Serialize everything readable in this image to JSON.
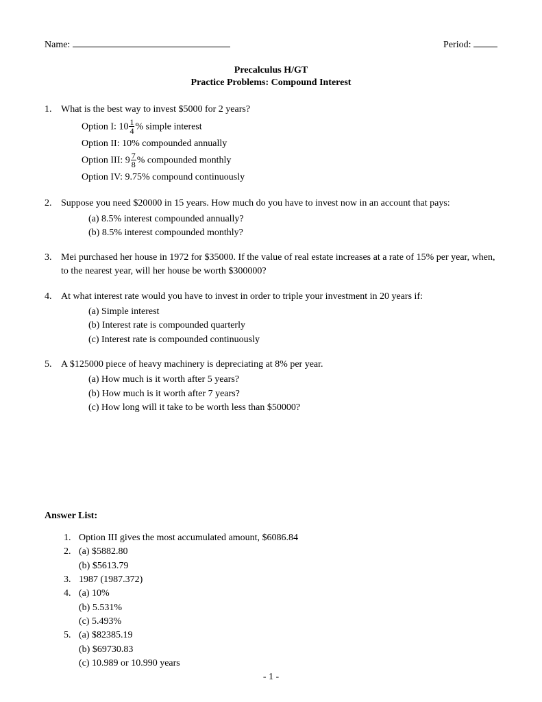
{
  "header": {
    "name_label": "Name:",
    "period_label": "Period:"
  },
  "title": {
    "line1": "Precalculus H/GT",
    "line2": "Practice Problems: Compound Interest"
  },
  "problems": [
    {
      "num": "1.",
      "text": "What is the best way to invest $5000 for 2 years?",
      "options": [
        {
          "prefix": "Option I: 10",
          "frac_num": "1",
          "frac_den": "4",
          "suffix": "% simple interest"
        },
        {
          "prefix": "Option II: 10% compounded annually"
        },
        {
          "prefix": "Option III: 9",
          "frac_num": "7",
          "frac_den": "8",
          "suffix": "% compounded monthly"
        },
        {
          "prefix": "Option IV: 9.75% compound continuously"
        }
      ]
    },
    {
      "num": "2.",
      "text": "Suppose you need $20000 in 15 years.  How much do you have to invest now in an account that pays:",
      "subparts": [
        "(a)  8.5% interest compounded annually?",
        "(b)  8.5% interest compounded monthly?"
      ]
    },
    {
      "num": "3.",
      "text": "Mei purchased her house in 1972 for $35000.  If the value of real estate increases at a rate of 15% per year, when, to the nearest year, will her house be worth $300000?"
    },
    {
      "num": "4.",
      "text": "At what interest rate would you have to invest in order to triple your investment in 20 years if:",
      "subparts": [
        "(a)  Simple interest",
        "(b)  Interest rate is compounded quarterly",
        "(c)  Interest rate is compounded continuously"
      ]
    },
    {
      "num": "5.",
      "text": "A $125000 piece of heavy machinery is depreciating at 8% per year.",
      "subparts": [
        "(a)  How much is it worth after 5 years?",
        "(b)  How much is it worth after 7 years?",
        "(c)  How long will it take to be worth less than $50000?"
      ]
    }
  ],
  "answer_heading": "Answer List:",
  "answers": [
    {
      "num": "1.",
      "lines": [
        "Option III gives the most accumulated amount, $6086.84"
      ]
    },
    {
      "num": "2.",
      "lines": [
        "(a) $5882.80",
        "(b) $5613.79"
      ]
    },
    {
      "num": "3.",
      "lines": [
        "1987 (1987.372)"
      ]
    },
    {
      "num": "4.",
      "lines": [
        "(a) 10%",
        "(b) 5.531%",
        "(c) 5.493%"
      ]
    },
    {
      "num": "5.",
      "lines": [
        "(a) $82385.19",
        "(b) $69730.83",
        "(c) 10.989 or 10.990 years"
      ]
    }
  ],
  "footer": "- 1 -"
}
